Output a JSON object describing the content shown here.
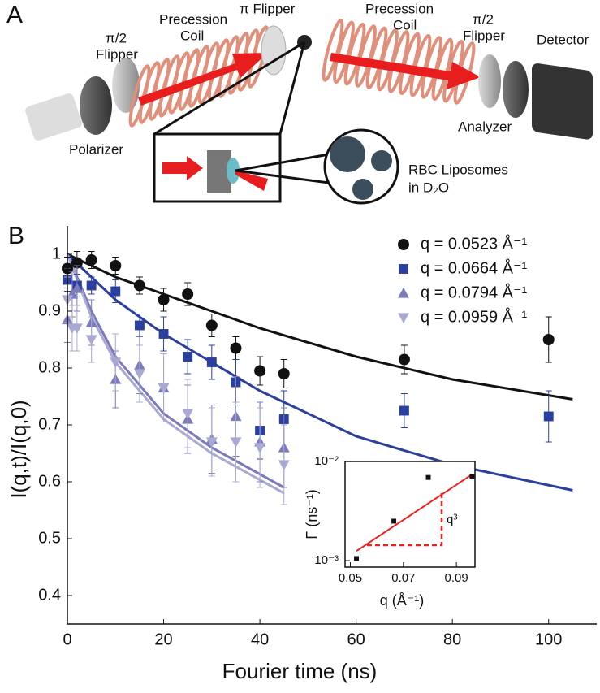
{
  "schematic": {
    "panel": "A",
    "flipper_1": [
      "π/2",
      "Flipper"
    ],
    "coil_1": [
      "Precession",
      "Coil"
    ],
    "pi_flipper": "π Flipper",
    "polarizer": "Polarizer",
    "coil_2": [
      "Precession",
      "Coil"
    ],
    "flipper_2": [
      "π/2",
      "Flipper"
    ],
    "detector": "Detector",
    "analyzer": "Analyzer",
    "sample": [
      "RBC Liposomes",
      "in D₂O"
    ]
  },
  "chart_data": [
    {
      "type": "scatter",
      "panel": "B",
      "xlabel": "Fourier time (ns)",
      "ylabel": "I(q,t)/I(q,0)",
      "xlim": [
        0,
        110
      ],
      "ylim": [
        0.35,
        1.05
      ],
      "xticks": [
        0,
        20,
        40,
        60,
        80,
        100
      ],
      "yticks": [
        0.4,
        0.5,
        0.6,
        0.7,
        0.8,
        0.9,
        1
      ],
      "log_y": false,
      "grid": false,
      "legend": "upper right",
      "series": [
        {
          "name": "q = 0.0523 Å⁻¹",
          "color": "#111111",
          "marker": "circle",
          "x": [
            0,
            2,
            5,
            10,
            15,
            20,
            25,
            30,
            35,
            40,
            45,
            70,
            100
          ],
          "values": [
            0.975,
            0.985,
            0.99,
            0.98,
            0.945,
            0.92,
            0.93,
            0.875,
            0.835,
            0.795,
            0.79,
            0.815,
            0.85
          ],
          "errors": [
            0.02,
            0.02,
            0.015,
            0.015,
            0.015,
            0.02,
            0.02,
            0.02,
            0.02,
            0.025,
            0.025,
            0.025,
            0.04
          ]
        },
        {
          "name": "q = 0.0664 Å⁻¹",
          "color": "#2b3f9e",
          "marker": "square",
          "x": [
            0,
            2,
            5,
            10,
            15,
            20,
            25,
            30,
            35,
            40,
            45,
            70,
            100
          ],
          "values": [
            0.955,
            0.945,
            0.945,
            0.935,
            0.875,
            0.86,
            0.82,
            0.81,
            0.775,
            0.69,
            0.71,
            0.725,
            0.715
          ],
          "errors": [
            0.02,
            0.02,
            0.015,
            0.02,
            0.02,
            0.03,
            0.03,
            0.03,
            0.04,
            0.05,
            0.05,
            0.03,
            0.045
          ]
        },
        {
          "name": "q = 0.0794 Å⁻¹",
          "color": "#7b7bbb",
          "marker": "triangle",
          "x": [
            0,
            1,
            2,
            5,
            10,
            15,
            20,
            25,
            30,
            35,
            40,
            45
          ],
          "values": [
            0.885,
            0.93,
            0.94,
            0.88,
            0.78,
            0.805,
            0.765,
            0.71,
            0.675,
            0.715,
            0.67,
            0.66
          ],
          "errors": [
            0.04,
            0.04,
            0.04,
            0.04,
            0.05,
            0.05,
            0.06,
            0.06,
            0.06,
            0.07,
            0.07,
            0.07
          ]
        },
        {
          "name": "q = 0.0959 Å⁻¹",
          "color": "#a9a9d3",
          "marker": "triangle-down",
          "x": [
            0,
            1,
            2,
            5,
            10,
            15,
            20,
            25,
            30,
            35,
            40,
            45
          ],
          "values": [
            0.92,
            0.87,
            0.87,
            0.85,
            0.81,
            0.79,
            0.765,
            0.72,
            0.67,
            0.67,
            0.66,
            0.63
          ],
          "errors": [
            0.04,
            0.04,
            0.04,
            0.04,
            0.05,
            0.05,
            0.06,
            0.06,
            0.06,
            0.07,
            0.07,
            0.07
          ]
        }
      ],
      "fits": [
        {
          "color": "#111111",
          "x": [
            0,
            10,
            20,
            40,
            60,
            80,
            105
          ],
          "values": [
            1,
            0.96,
            0.93,
            0.87,
            0.82,
            0.78,
            0.745
          ]
        },
        {
          "color": "#2b3f9e",
          "x": [
            0,
            10,
            20,
            40,
            60,
            80,
            105
          ],
          "values": [
            1,
            0.92,
            0.86,
            0.76,
            0.68,
            0.63,
            0.585
          ]
        },
        {
          "color": "#7b7bbb",
          "x": [
            0,
            5,
            10,
            20,
            30,
            45
          ],
          "values": [
            1,
            0.9,
            0.82,
            0.72,
            0.66,
            0.59
          ]
        },
        {
          "color": "#a9a9d3",
          "x": [
            0,
            5,
            10,
            20,
            30,
            45
          ],
          "values": [
            1,
            0.89,
            0.81,
            0.71,
            0.65,
            0.58
          ]
        }
      ]
    },
    {
      "type": "scatter",
      "xlabel": "q (Å⁻¹)",
      "ylabel": "Γ (ns⁻¹)",
      "annotation": "q³",
      "xlim": [
        0.048,
        0.097
      ],
      "ylim": [
        0.00086,
        0.01
      ],
      "xticks": [
        0.05,
        0.07,
        0.09
      ],
      "yticks": [
        {
          "value": 0.001,
          "label": "10⁻³"
        },
        {
          "value": 0.01,
          "label": "10⁻²"
        }
      ],
      "log_y": true,
      "grid": false,
      "series": [
        {
          "color": "#111111",
          "marker": "square",
          "x": [
            0.0523,
            0.0664,
            0.0794,
            0.0959
          ],
          "values": [
            0.00105,
            0.0025,
            0.0069,
            0.0071
          ]
        }
      ],
      "fits": [
        {
          "color": "#e8221c",
          "x": [
            0.0523,
            0.0959
          ],
          "values": [
            0.00125,
            0.0074
          ]
        }
      ]
    }
  ]
}
